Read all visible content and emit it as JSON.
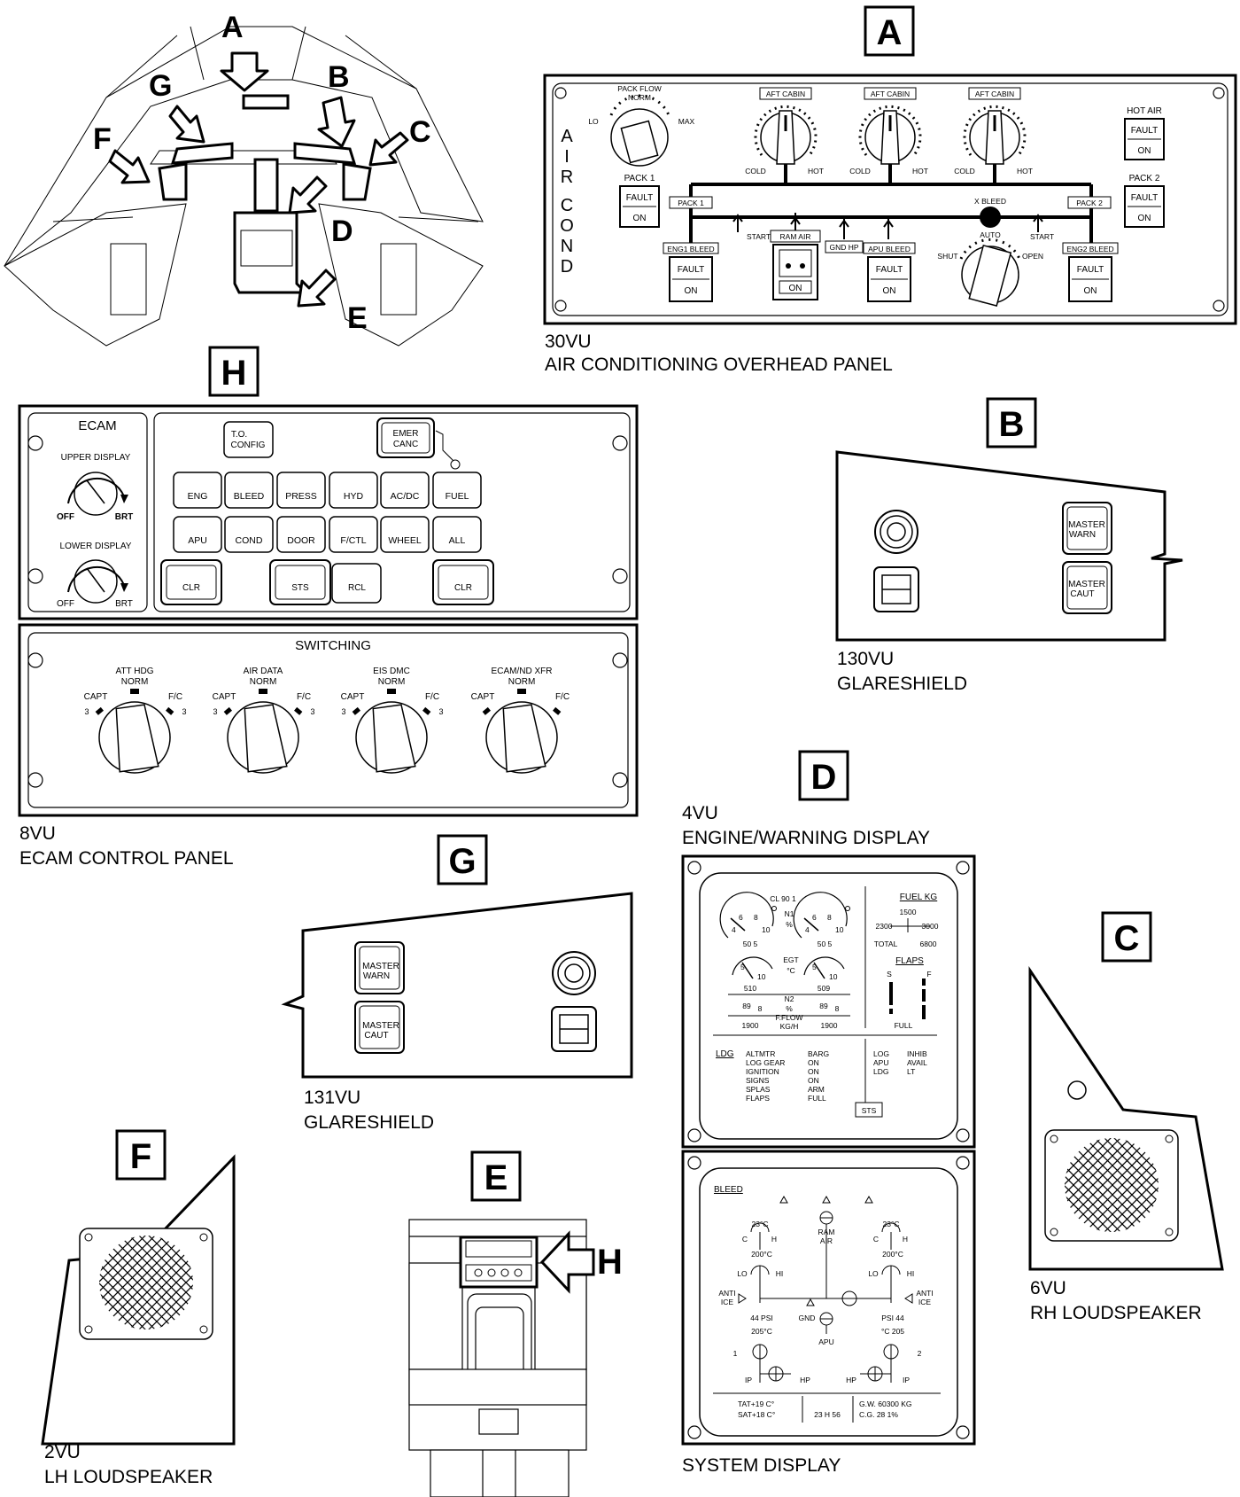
{
  "overview": {
    "letters": [
      "A",
      "B",
      "C",
      "D",
      "E",
      "F",
      "G"
    ]
  },
  "panel_a": {
    "tag": "A",
    "caption_code": "30VU",
    "caption_name": "AIR CONDITIONING OVERHEAD PANEL",
    "side_text": [
      "A",
      "I",
      "R",
      "C",
      "O",
      "N",
      "D"
    ],
    "pack_flow": {
      "title": "PACK FLOW",
      "norm": "NORM",
      "lo": "LO",
      "max": "MAX"
    },
    "cabin_knobs": [
      {
        "label": "AFT CABIN",
        "cold": "COLD",
        "hot": "HOT"
      },
      {
        "label": "AFT CABIN",
        "cold": "COLD",
        "hot": "HOT"
      },
      {
        "label": "AFT CABIN",
        "cold": "COLD",
        "hot": "HOT"
      }
    ],
    "hot_air": {
      "label": "HOT AIR",
      "fault": "FAULT",
      "on": "ON"
    },
    "pack1": {
      "label": "PACK 1",
      "fault": "FAULT",
      "on": "ON"
    },
    "pack2": {
      "label": "PACK 2",
      "fault": "FAULT",
      "on": "ON"
    },
    "duct_pack1": "PACK 1",
    "duct_pack2": "PACK 2",
    "xbleed": {
      "label": "X BLEED",
      "auto": "AUTO",
      "shut": "SHUT",
      "open": "OPEN"
    },
    "start_left": "START",
    "start_right": "START",
    "gnd_hp": "GND HP",
    "ram_air": {
      "label": "RAM AIR",
      "on": "ON"
    },
    "eng1_bleed": {
      "label": "ENG1 BLEED",
      "fault": "FAULT",
      "on": "ON"
    },
    "apu_bleed": {
      "label": "APU BLEED",
      "fault": "FAULT",
      "on": "ON"
    },
    "eng2_bleed": {
      "label": "ENG2 BLEED",
      "fault": "FAULT",
      "on": "ON"
    }
  },
  "panel_b": {
    "tag": "B",
    "caption_code": "130VU",
    "caption_name": "GLARESHIELD",
    "master_warn": [
      "MASTER",
      "WARN"
    ],
    "master_caut": [
      "MASTER",
      "CAUT"
    ]
  },
  "panel_c": {
    "tag": "C",
    "caption_code": "6VU",
    "caption_name": "RH LOUDSPEAKER"
  },
  "panel_d": {
    "tag": "D",
    "caption_code": "4VU",
    "caption_name": "ENGINE/WARNING DISPLAY",
    "system_caption": "SYSTEM DISPLAY",
    "ewd": {
      "cl": "CL 90 1",
      "n1": "N1",
      "pct": "%",
      "egt": "EGT",
      "degc": "°C",
      "n2": "N2",
      "fflow": "F.FLOW",
      "kgh": "KG/H",
      "n1_left": "50 5",
      "n1_right": "50 5",
      "egt_left": "510",
      "egt_right": "509",
      "n2_left": "89",
      "n2_left_dec": "8",
      "n2_right": "89",
      "n2_right_dec": "8",
      "ff_left": "1900",
      "ff_right": "1900",
      "gauge_ticks": [
        "4",
        "6",
        "8",
        "10"
      ],
      "egt_ticks": [
        "5",
        "10"
      ],
      "fuel_title": "FUEL KG",
      "fuel_center": "1500",
      "fuel_left": "2300",
      "fuel_right": "3000",
      "total_label": "TOTAL",
      "total_value": "6800",
      "flaps_title": "FLAPS",
      "flaps_s": "S",
      "flaps_f": "F",
      "flaps_full": "FULL",
      "ldg_title": "LDG",
      "ldg_items": [
        "ALTMTR",
        "LOG GEAR",
        "IGNITION",
        "SIGNS",
        "SPLAS",
        "FLAPS"
      ],
      "ldg_values": [
        "BARG",
        "ON",
        "ON",
        "ON",
        "ARM",
        "FULL"
      ],
      "right_col1": [
        "LOG",
        "APU",
        "LDG"
      ],
      "right_col2": [
        "INHIB",
        "AVAIL",
        "LT"
      ],
      "sts": "STS"
    },
    "sd": {
      "title": "BLEED",
      "temp_left": "23°C",
      "temp_right": "23°C",
      "c": "C",
      "h": "H",
      "press_left": "200°C",
      "press_right": "200°C",
      "lo": "LO",
      "hi": "HI",
      "ram_air": "RAM\nAIR",
      "anti_ice": "ANTI\nICE",
      "psi_left": "44 PSI",
      "psi_right": "PSI 44",
      "gnd": "GND",
      "apu": "APU",
      "eng_temp_left": "205°C",
      "eng_temp_right": "°C 205",
      "eng1": "1",
      "eng2": "2",
      "ip": "IP",
      "hp": "HP",
      "tat": "TAT+19 C°",
      "sat": "SAT+18 C°",
      "time": "23 H 56",
      "gw": "G.W. 60300 KG",
      "cg": "C.G. 28 1%"
    }
  },
  "panel_e": {
    "tag": "E",
    "arrow_letter": "H"
  },
  "panel_f": {
    "tag": "F",
    "caption_code": "2VU",
    "caption_name": "LH LOUDSPEAKER"
  },
  "panel_g": {
    "tag": "G",
    "caption_code": "131VU",
    "caption_name": "GLARESHIELD",
    "master_warn": [
      "MASTER",
      "WARN"
    ],
    "master_caut": [
      "MASTER",
      "CAUT"
    ]
  },
  "panel_h": {
    "tag": "H",
    "caption_code": "8VU",
    "caption_name": "ECAM CONTROL PANEL",
    "ecam_title": "ECAM",
    "upper_display": "UPPER DISPLAY",
    "lower_display": "LOWER DISPLAY",
    "off": "OFF",
    "brt": "BRT",
    "to_config": [
      "T.O.",
      "CONFIG"
    ],
    "emer_canc": [
      "EMER",
      "CANC"
    ],
    "row1": [
      "ENG",
      "BLEED",
      "PRESS",
      "HYD",
      "AC/DC",
      "FUEL"
    ],
    "row2": [
      "APU",
      "COND",
      "DOOR",
      "F/CTL",
      "WHEEL",
      "ALL"
    ],
    "clr": "CLR",
    "sts": "STS",
    "rcl": "RCL",
    "switching_title": "SWITCHING",
    "switch_knobs": [
      {
        "top": "ATT HDG",
        "norm": "NORM",
        "capt": "CAPT",
        "fc": "F/C",
        "n": "3"
      },
      {
        "top": "AIR DATA",
        "norm": "NORM",
        "capt": "CAPT",
        "fc": "F/C",
        "n": "3"
      },
      {
        "top": "EIS DMC",
        "norm": "NORM",
        "capt": "CAPT",
        "fc": "F/C",
        "n": "3"
      },
      {
        "top": "ECAM/ND XFR",
        "norm": "NORM",
        "capt": "CAPT",
        "fc": "F/C",
        "n": ""
      }
    ]
  }
}
